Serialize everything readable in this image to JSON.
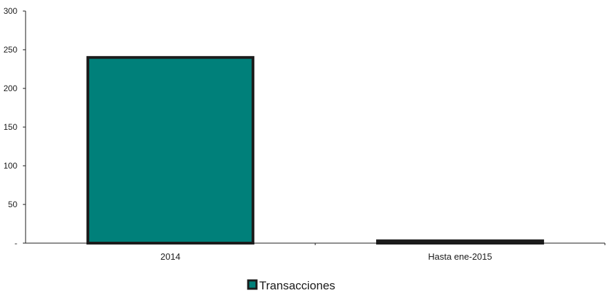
{
  "chart_data": {
    "type": "bar",
    "categories": [
      "2014",
      "Hasta ene-2015"
    ],
    "series": [
      {
        "name": "Transacciones",
        "values": [
          240,
          3
        ]
      }
    ],
    "ylim": [
      0,
      300
    ],
    "yticks": [
      0,
      50,
      100,
      150,
      200,
      250,
      300
    ],
    "ytick_labels": [
      "-",
      "50",
      "100",
      "150",
      "200",
      "250",
      "300"
    ],
    "grid": false,
    "legend_position": "bottom-center",
    "colors": {
      "bar_fill": "#00807a",
      "bar_stroke": "#1c1c1c",
      "axis": "#1a1a1a"
    }
  }
}
